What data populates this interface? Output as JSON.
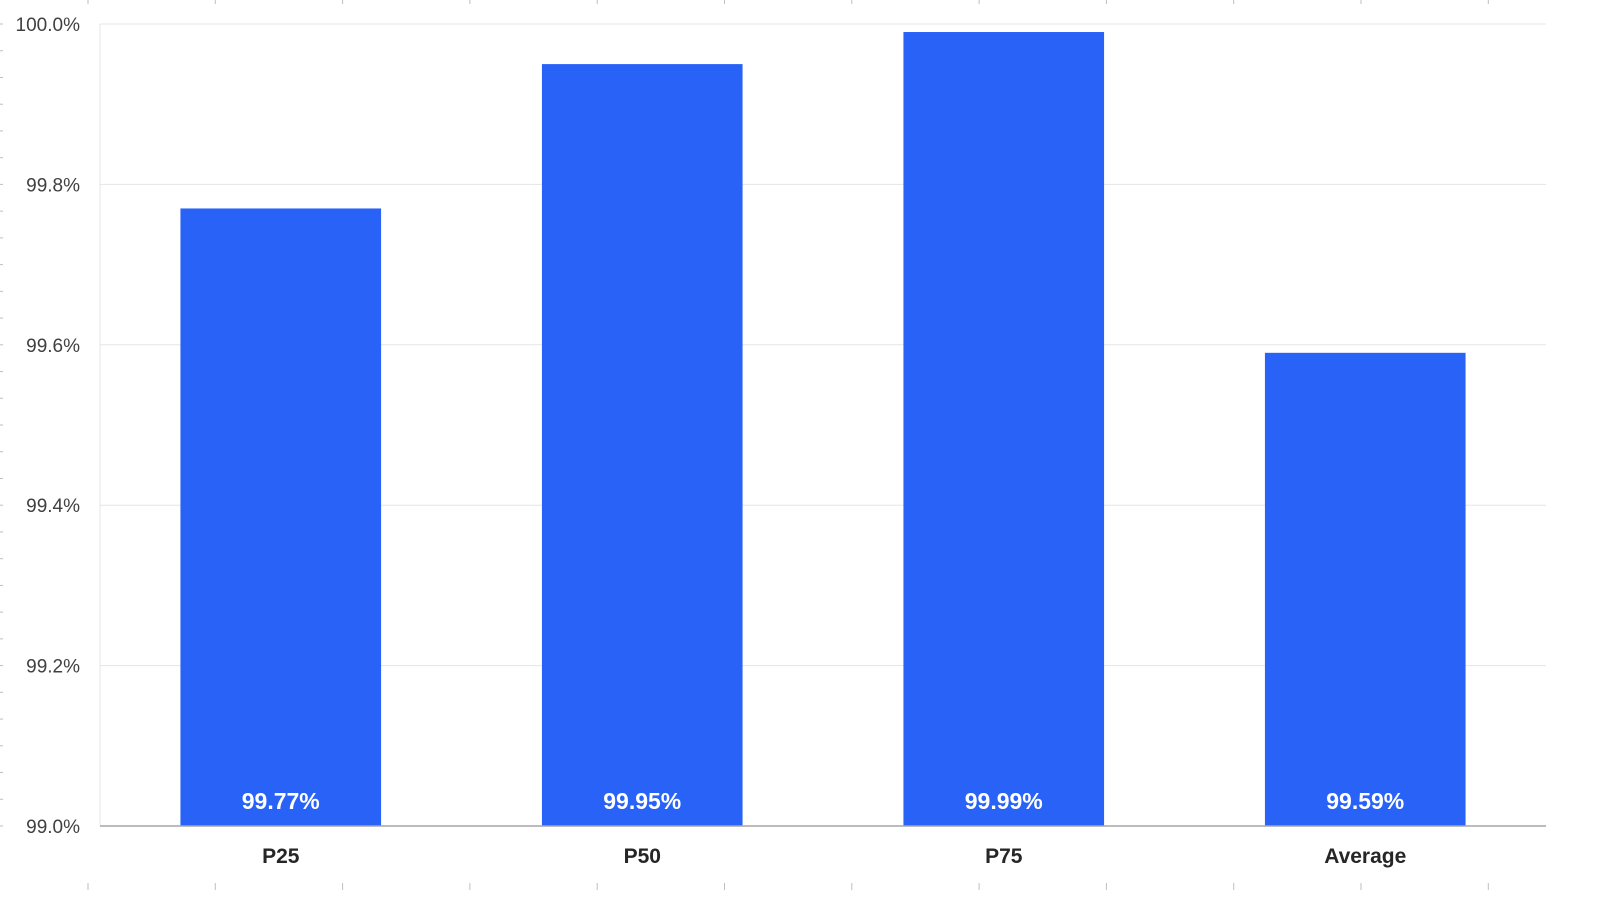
{
  "chart_data": {
    "type": "bar",
    "title": "",
    "xlabel": "",
    "ylabel": "",
    "categories": [
      "P25",
      "P50",
      "P75",
      "Average"
    ],
    "values": [
      99.77,
      99.95,
      99.99,
      99.59
    ],
    "data_labels": [
      "99.77%",
      "99.95%",
      "99.99%",
      "99.59%"
    ],
    "ylim": [
      99.0,
      100.0
    ],
    "yticks": [
      99.0,
      99.2,
      99.4,
      99.6,
      99.8,
      100.0
    ],
    "ytick_labels": [
      "99.0%",
      "99.2%",
      "99.4%",
      "99.6%",
      "99.8%",
      "100.0%"
    ],
    "grid": true,
    "legend": "none",
    "bar_color": "#2962F6",
    "gridline_color": "#E5E5E5",
    "axis_color": "#A6A6A6"
  }
}
